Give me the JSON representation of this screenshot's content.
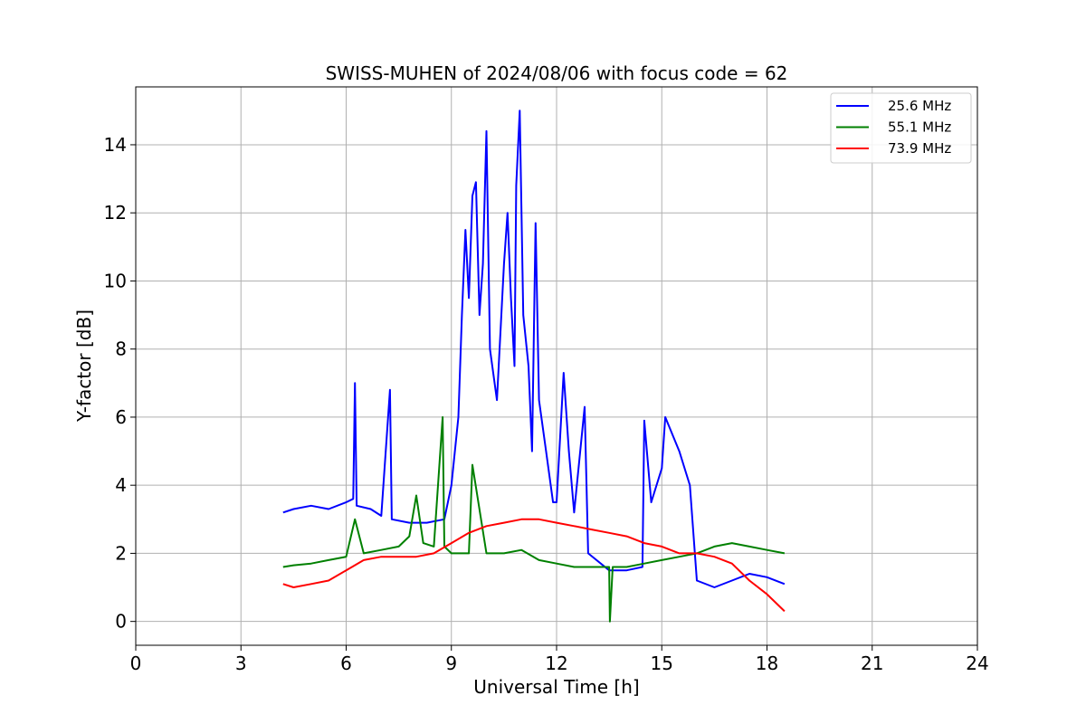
{
  "chart_data": {
    "type": "line",
    "title": "SWISS-MUHEN of 2024/08/06 with focus code = 62",
    "xlabel": "Universal Time [h]",
    "ylabel": "Y-factor [dB]",
    "xlim": [
      0,
      24
    ],
    "ylim": [
      -0.7,
      15.7
    ],
    "xticks": [
      0,
      3,
      6,
      9,
      12,
      15,
      18,
      21,
      24
    ],
    "yticks": [
      0,
      2,
      4,
      6,
      8,
      10,
      12,
      14
    ],
    "grid": true,
    "legend_position": "top-right",
    "series": [
      {
        "name": "25.6 MHz",
        "color": "#0000ff",
        "points": [
          [
            4.2,
            3.2
          ],
          [
            4.5,
            3.3
          ],
          [
            5.0,
            3.4
          ],
          [
            5.5,
            3.3
          ],
          [
            6.0,
            3.5
          ],
          [
            6.2,
            3.6
          ],
          [
            6.25,
            7.0
          ],
          [
            6.3,
            3.4
          ],
          [
            6.7,
            3.3
          ],
          [
            7.0,
            3.1
          ],
          [
            7.25,
            6.8
          ],
          [
            7.3,
            3.0
          ],
          [
            7.8,
            2.9
          ],
          [
            8.3,
            2.9
          ],
          [
            8.8,
            3.0
          ],
          [
            9.0,
            4.0
          ],
          [
            9.2,
            6.0
          ],
          [
            9.3,
            9.0
          ],
          [
            9.4,
            11.5
          ],
          [
            9.5,
            9.5
          ],
          [
            9.6,
            12.5
          ],
          [
            9.7,
            12.9
          ],
          [
            9.8,
            9.0
          ],
          [
            9.9,
            10.5
          ],
          [
            10.0,
            14.4
          ],
          [
            10.1,
            8.0
          ],
          [
            10.3,
            6.5
          ],
          [
            10.5,
            10.5
          ],
          [
            10.6,
            12.0
          ],
          [
            10.7,
            9.5
          ],
          [
            10.8,
            7.5
          ],
          [
            10.85,
            12.8
          ],
          [
            10.95,
            15.0
          ],
          [
            11.05,
            9.0
          ],
          [
            11.2,
            7.5
          ],
          [
            11.3,
            5.0
          ],
          [
            11.4,
            11.7
          ],
          [
            11.5,
            6.5
          ],
          [
            11.7,
            5.0
          ],
          [
            11.9,
            3.5
          ],
          [
            12.0,
            3.5
          ],
          [
            12.2,
            7.3
          ],
          [
            12.35,
            5.0
          ],
          [
            12.5,
            3.2
          ],
          [
            12.8,
            6.3
          ],
          [
            12.9,
            2.0
          ],
          [
            13.5,
            1.5
          ],
          [
            14.0,
            1.5
          ],
          [
            14.45,
            1.6
          ],
          [
            14.5,
            5.9
          ],
          [
            14.7,
            3.5
          ],
          [
            15.0,
            4.5
          ],
          [
            15.1,
            6.0
          ],
          [
            15.5,
            5.0
          ],
          [
            15.8,
            4.0
          ],
          [
            16.0,
            1.2
          ],
          [
            16.5,
            1.0
          ],
          [
            17.0,
            1.2
          ],
          [
            17.5,
            1.4
          ],
          [
            18.0,
            1.3
          ],
          [
            18.5,
            1.1
          ]
        ]
      },
      {
        "name": "55.1 MHz",
        "color": "#008000",
        "points": [
          [
            4.2,
            1.6
          ],
          [
            4.5,
            1.65
          ],
          [
            5.0,
            1.7
          ],
          [
            5.5,
            1.8
          ],
          [
            6.0,
            1.9
          ],
          [
            6.25,
            3.0
          ],
          [
            6.5,
            2.0
          ],
          [
            7.0,
            2.1
          ],
          [
            7.5,
            2.2
          ],
          [
            7.8,
            2.5
          ],
          [
            8.0,
            3.7
          ],
          [
            8.2,
            2.3
          ],
          [
            8.5,
            2.2
          ],
          [
            8.75,
            6.0
          ],
          [
            8.8,
            2.2
          ],
          [
            9.0,
            2.0
          ],
          [
            9.5,
            2.0
          ],
          [
            9.6,
            4.6
          ],
          [
            10.0,
            2.0
          ],
          [
            10.5,
            2.0
          ],
          [
            11.0,
            2.1
          ],
          [
            11.5,
            1.8
          ],
          [
            12.0,
            1.7
          ],
          [
            12.5,
            1.6
          ],
          [
            13.0,
            1.6
          ],
          [
            13.5,
            1.6
          ],
          [
            13.52,
            0.0
          ],
          [
            13.6,
            1.6
          ],
          [
            14.0,
            1.6
          ],
          [
            14.5,
            1.7
          ],
          [
            15.0,
            1.8
          ],
          [
            15.5,
            1.9
          ],
          [
            16.0,
            2.0
          ],
          [
            16.5,
            2.2
          ],
          [
            17.0,
            2.3
          ],
          [
            17.5,
            2.2
          ],
          [
            18.0,
            2.1
          ],
          [
            18.5,
            2.0
          ]
        ]
      },
      {
        "name": "73.9 MHz",
        "color": "#ff0000",
        "points": [
          [
            4.2,
            1.1
          ],
          [
            4.5,
            1.0
          ],
          [
            5.0,
            1.1
          ],
          [
            5.5,
            1.2
          ],
          [
            6.0,
            1.5
          ],
          [
            6.5,
            1.8
          ],
          [
            7.0,
            1.9
          ],
          [
            7.5,
            1.9
          ],
          [
            8.0,
            1.9
          ],
          [
            8.5,
            2.0
          ],
          [
            9.0,
            2.3
          ],
          [
            9.5,
            2.6
          ],
          [
            10.0,
            2.8
          ],
          [
            10.5,
            2.9
          ],
          [
            11.0,
            3.0
          ],
          [
            11.5,
            3.0
          ],
          [
            12.0,
            2.9
          ],
          [
            12.5,
            2.8
          ],
          [
            13.0,
            2.7
          ],
          [
            13.5,
            2.6
          ],
          [
            14.0,
            2.5
          ],
          [
            14.5,
            2.3
          ],
          [
            15.0,
            2.2
          ],
          [
            15.5,
            2.0
          ],
          [
            16.0,
            2.0
          ],
          [
            16.5,
            1.9
          ],
          [
            17.0,
            1.7
          ],
          [
            17.5,
            1.2
          ],
          [
            18.0,
            0.8
          ],
          [
            18.5,
            0.3
          ]
        ]
      }
    ]
  }
}
